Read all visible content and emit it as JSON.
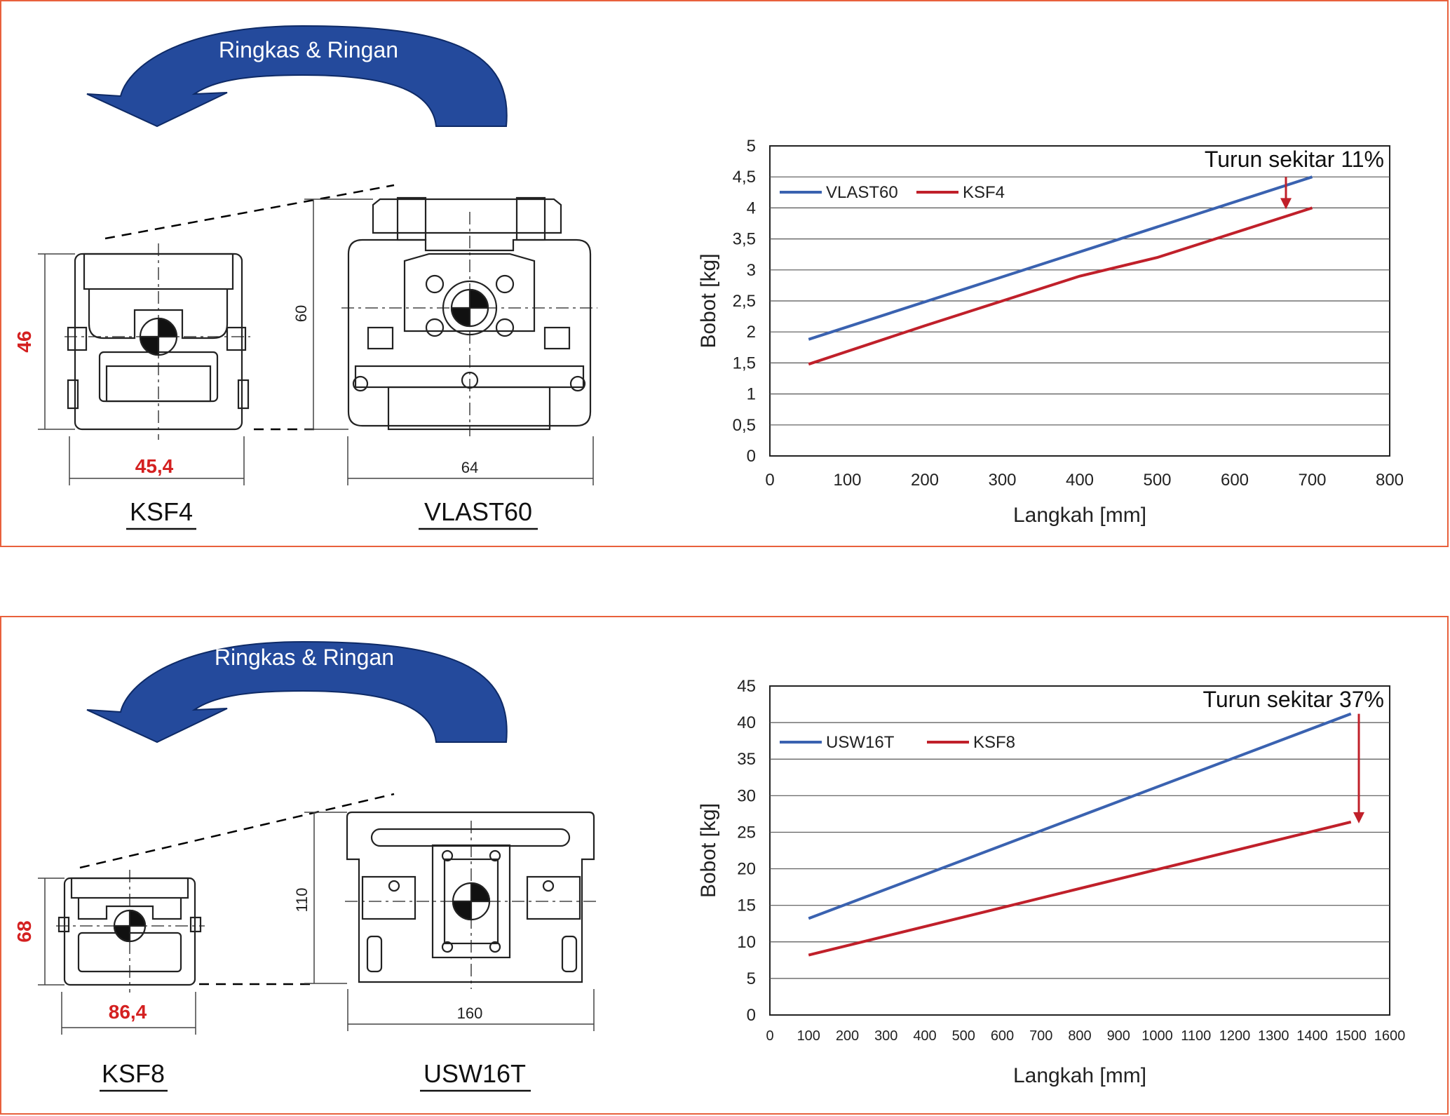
{
  "comparisons": [
    {
      "banner": "Ringkas & Ringan",
      "small": {
        "name": "KSF4",
        "height": "46",
        "width": "45,4"
      },
      "large": {
        "name": "VLAST60",
        "height": "60",
        "width": "64"
      },
      "chart": {
        "annotation": "Turun sekitar 11%",
        "ylabel": "Bobot [kg]",
        "xlabel": "Langkah [mm]",
        "y_ticks": [
          "0",
          "0,5",
          "1",
          "1,5",
          "2",
          "2,5",
          "3",
          "3,5",
          "4",
          "4,5",
          "5"
        ],
        "x_ticks": [
          "0",
          "100",
          "200",
          "300",
          "400",
          "500",
          "600",
          "700",
          "800"
        ]
      }
    },
    {
      "banner": "Ringkas & Ringan",
      "small": {
        "name": "KSF8",
        "height": "68",
        "width": "86,4"
      },
      "large": {
        "name": "USW16T",
        "height": "110",
        "width": "160"
      },
      "chart": {
        "annotation": "Turun sekitar 37%",
        "ylabel": "Bobot [kg]",
        "xlabel": "Langkah [mm]",
        "y_ticks": [
          "0",
          "5",
          "10",
          "15",
          "20",
          "25",
          "30",
          "35",
          "40",
          "45"
        ],
        "x_ticks": [
          "0",
          "100",
          "200",
          "300",
          "400",
          "500",
          "600",
          "700",
          "800",
          "900",
          "1000",
          "1100",
          "1200",
          "1300",
          "1400",
          "1500",
          "1600"
        ]
      }
    }
  ],
  "chart_data": [
    {
      "type": "line",
      "title": "",
      "xlabel": "Langkah [mm]",
      "ylabel": "Bobot [kg]",
      "xlim": [
        0,
        800
      ],
      "ylim": [
        0,
        5
      ],
      "grid": true,
      "legend": "top-left",
      "annotation": "Turun sekitar 11%",
      "series": [
        {
          "name": "VLAST60",
          "color": "#3a62b0",
          "x": [
            50,
            700
          ],
          "y": [
            1.88,
            4.5
          ]
        },
        {
          "name": "KSF4",
          "color": "#c0202a",
          "x": [
            50,
            200,
            300,
            400,
            500,
            600,
            700
          ],
          "y": [
            1.48,
            2.1,
            2.5,
            2.9,
            3.2,
            3.6,
            4.0
          ]
        }
      ]
    },
    {
      "type": "line",
      "title": "",
      "xlabel": "Langkah [mm]",
      "ylabel": "Bobot [kg]",
      "xlim": [
        0,
        1600
      ],
      "ylim": [
        0,
        45
      ],
      "grid": true,
      "legend": "top-left",
      "annotation": "Turun sekitar 37%",
      "series": [
        {
          "name": "USW16T",
          "color": "#3a62b0",
          "x": [
            100,
            1500
          ],
          "y": [
            13.2,
            41.2
          ]
        },
        {
          "name": "KSF8",
          "color": "#c0202a",
          "x": [
            100,
            1500
          ],
          "y": [
            8.2,
            26.4
          ]
        }
      ]
    }
  ]
}
